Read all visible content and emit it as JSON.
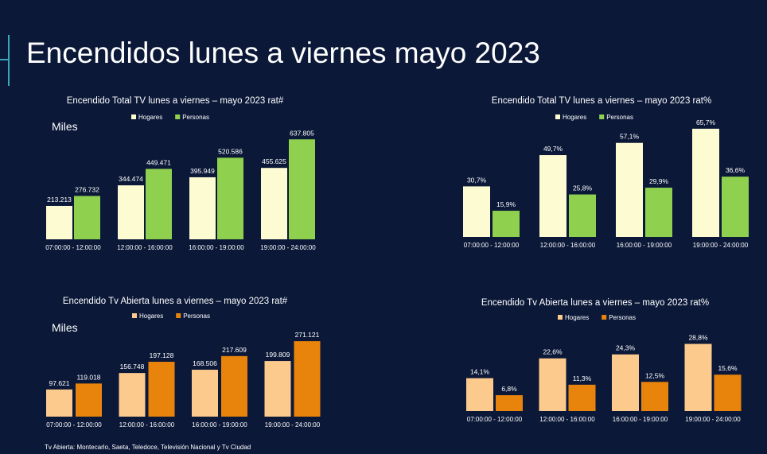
{
  "slide": {
    "title": "Encendidos lunes a viernes mayo 2023",
    "footnote": "Tv Abierta: Montecarlo, Saeta, Teledoce, Televisión Nacional y Tv Ciudad"
  },
  "colors": {
    "background": "#0b1838",
    "accent": "#3aa6b9",
    "total_hogares": "#fdfbd2",
    "total_personas": "#8fd14f",
    "abierta_hogares": "#fdca8d",
    "abierta_personas": "#e8830c"
  },
  "chart_data": [
    {
      "type": "bar",
      "title": "Encendido Total TV lunes a viernes – mayo 2023 rat#",
      "unit_label": "Miles",
      "categories": [
        "07:00:00 - 12:00:00",
        "12:00:00 - 16:00:00",
        "16:00:00 - 19:00:00",
        "19:00:00 - 24:00:00"
      ],
      "series": [
        {
          "name": "Hogares",
          "values": [
            213.213,
            344.474,
            395.949,
            455.625
          ],
          "labels": [
            "213.213",
            "344.474",
            "395.949",
            "455.625"
          ]
        },
        {
          "name": "Personas",
          "values": [
            276.732,
            449.471,
            520.586,
            637.805
          ],
          "labels": [
            "276.732",
            "449.471",
            "520.586",
            "637.805"
          ]
        }
      ],
      "legend": "top",
      "grid": false,
      "ylim": [
        0,
        700
      ]
    },
    {
      "type": "bar",
      "title": "Encendido Total TV lunes a viernes – mayo 2023 rat%",
      "categories": [
        "07:00:00 - 12:00:00",
        "12:00:00 - 16:00:00",
        "16:00:00 - 19:00:00",
        "19:00:00 - 24:00:00"
      ],
      "series": [
        {
          "name": "Hogares",
          "values": [
            30.7,
            49.7,
            57.1,
            65.7
          ],
          "labels": [
            "30,7%",
            "49,7%",
            "57,1%",
            "65,7%"
          ]
        },
        {
          "name": "Personas",
          "values": [
            15.9,
            25.8,
            29.9,
            36.6
          ],
          "labels": [
            "15,9%",
            "25,8%",
            "29,9%",
            "36,6%"
          ]
        }
      ],
      "legend": "top",
      "grid": false,
      "ylim": [
        0,
        70
      ]
    },
    {
      "type": "bar",
      "title": "Encendido Tv Abierta lunes a viernes – mayo 2023 rat#",
      "unit_label": "Miles",
      "categories": [
        "07:00:00 - 12:00:00",
        "12:00:00 - 16:00:00",
        "16:00:00 - 19:00:00",
        "19:00:00 - 24:00:00"
      ],
      "series": [
        {
          "name": "Hogares",
          "values": [
            97.621,
            156.748,
            168.506,
            199.809
          ],
          "labels": [
            "97.621",
            "156.748",
            "168.506",
            "199.809"
          ]
        },
        {
          "name": "Personas",
          "values": [
            119.018,
            197.128,
            217.609,
            271.121
          ],
          "labels": [
            "119.018",
            "197.128",
            "217.609",
            "271.121"
          ]
        }
      ],
      "legend": "top",
      "grid": false,
      "ylim": [
        0,
        300
      ]
    },
    {
      "type": "bar",
      "title": "Encendido Tv Abierta lunes a viernes – mayo 2023 rat%",
      "categories": [
        "07:00:00 - 12:00:00",
        "12:00:00 - 16:00:00",
        "16:00:00 - 19:00:00",
        "19:00:00 - 24:00:00"
      ],
      "series": [
        {
          "name": "Hogares",
          "values": [
            14.1,
            22.6,
            24.3,
            28.8
          ],
          "labels": [
            "14,1%",
            "22,6%",
            "24,3%",
            "28,8%"
          ]
        },
        {
          "name": "Personas",
          "values": [
            6.8,
            11.3,
            12.5,
            15.6
          ],
          "labels": [
            "6,8%",
            "11,3%",
            "12,5%",
            "15,6%"
          ]
        }
      ],
      "legend": "top",
      "grid": false,
      "ylim": [
        0,
        30
      ]
    }
  ]
}
